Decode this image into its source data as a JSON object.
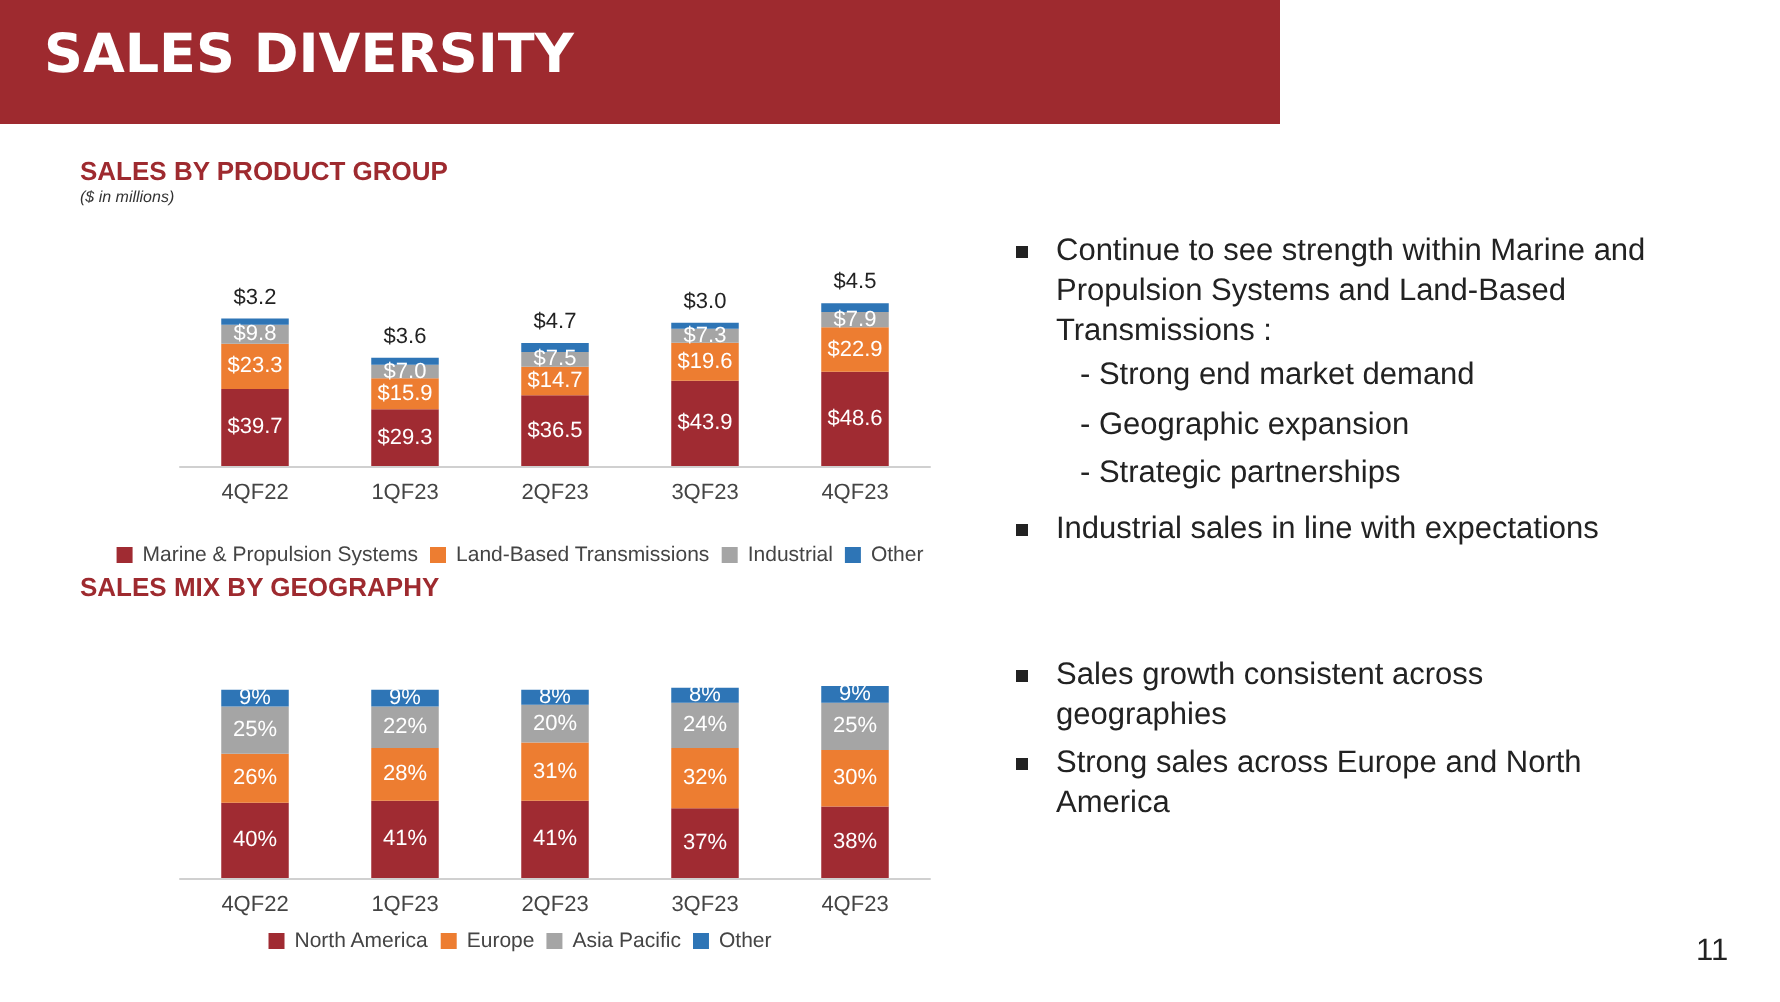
{
  "chart_data": [
    {
      "type": "bar",
      "stacked": true,
      "title": "SALES BY PRODUCT GROUP",
      "subtitle": "($ in millions)",
      "legend": "bottom",
      "annotations": [
        "SALES DIVERSITY",
        "Continue to see strength within Marine and Propulsion Systems and Land-Based Transmissions :",
        "- Strong end market demand",
        "- Geographic expansion",
        "- Strategic partnerships",
        "Industrial sales in line with expectations",
        "11"
      ],
      "categories": [
        "4QF22",
        "1QF23",
        "2QF23",
        "3QF23",
        "4QF23"
      ],
      "series": [
        {
          "name": "Marine & Propulsion Systems",
          "color": "#a02b32",
          "values": [
            39.7,
            29.3,
            36.5,
            43.9,
            48.6
          ],
          "value_labels": [
            "$39.7",
            "$29.3",
            "$36.5",
            "$43.9",
            "$48.6"
          ]
        },
        {
          "name": "Land-Based Transmissions",
          "color": "#ed7d31",
          "values": [
            23.3,
            15.9,
            14.7,
            19.6,
            22.9
          ],
          "value_labels": [
            "$23.3",
            "$15.9",
            "$14.7",
            "$19.6",
            "$22.9"
          ]
        },
        {
          "name": "Industrial",
          "color": "#a5a5a5",
          "values": [
            9.8,
            7.0,
            7.5,
            7.3,
            7.9
          ],
          "value_labels": [
            "$9.8",
            "$7.0",
            "$7.5",
            "$7.3",
            "$7.9"
          ]
        },
        {
          "name": "Other",
          "color": "#2e75b6",
          "values": [
            3.2,
            3.6,
            4.7,
            3.0,
            4.5
          ],
          "value_labels": [
            "$3.2",
            "$3.6",
            "$4.7",
            "$3.0",
            "$4.5"
          ]
        }
      ]
    },
    {
      "type": "bar",
      "stacked": true,
      "title": "SALES MIX BY GEOGRAPHY",
      "legend": "bottom",
      "annotations": [
        "Sales growth consistent across geographies",
        "Strong sales across Europe and North America"
      ],
      "categories": [
        "4QF22",
        "1QF23",
        "2QF23",
        "3QF23",
        "4QF23"
      ],
      "series": [
        {
          "name": "North America",
          "color": "#a02b32",
          "values": [
            40,
            41,
            41,
            37,
            38
          ],
          "value_labels": [
            "40%",
            "41%",
            "41%",
            "37%",
            "38%"
          ]
        },
        {
          "name": "Europe",
          "color": "#ed7d31",
          "values": [
            26,
            28,
            31,
            32,
            30
          ],
          "value_labels": [
            "26%",
            "28%",
            "31%",
            "32%",
            "30%"
          ]
        },
        {
          "name": "Asia Pacific",
          "color": "#a5a5a5",
          "values": [
            25,
            22,
            20,
            24,
            25
          ],
          "value_labels": [
            "25%",
            "22%",
            "20%",
            "24%",
            "25%"
          ]
        },
        {
          "name": "Other",
          "color": "#2e75b6",
          "values": [
            9,
            9,
            8,
            8,
            9
          ],
          "value_labels": [
            "9%",
            "9%",
            "8%",
            "8%",
            "9%"
          ]
        }
      ]
    }
  ]
}
